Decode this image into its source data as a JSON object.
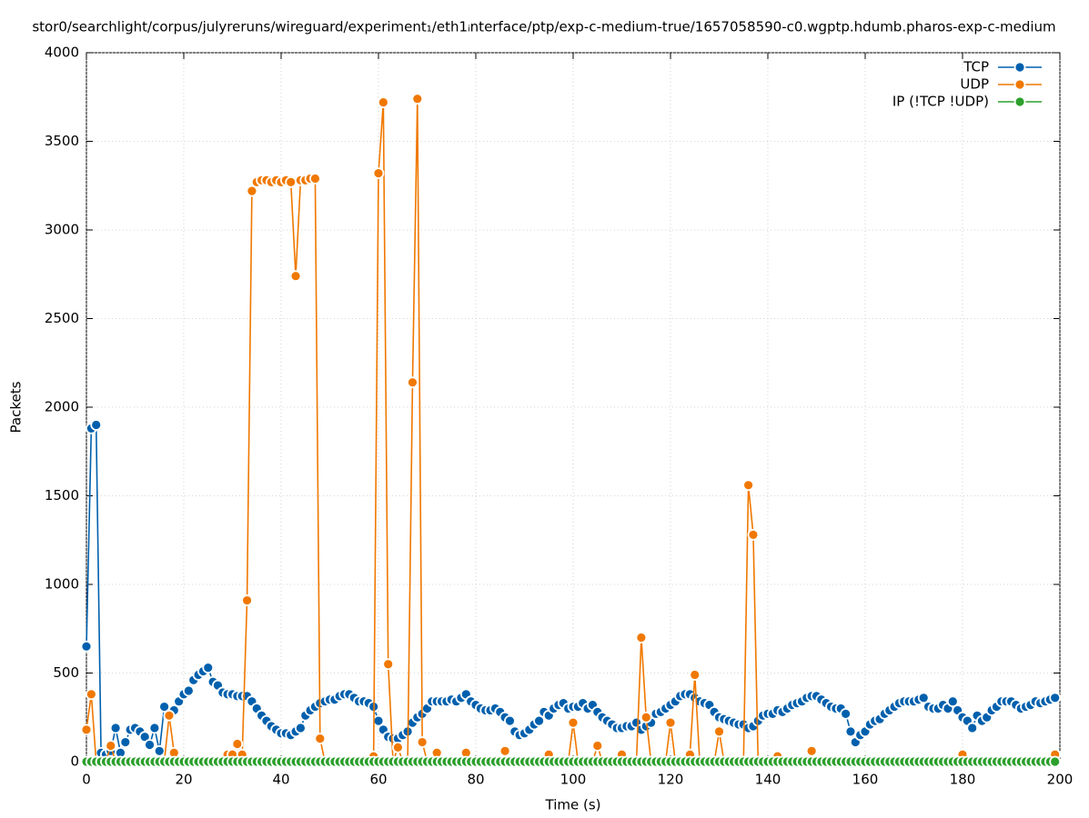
{
  "chart_data": {
    "type": "line",
    "title": "stor0/searchlight/corpus/julyreruns/wireguard/experiment₁/eth1ᵢnterface/ptp/exp-c-medium-true/1657058590-c0.wgptp.hdumb.pharos-exp-c-medium",
    "xlabel": "Time (s)",
    "ylabel": "Packets",
    "xlim": [
      0,
      200
    ],
    "ylim": [
      0,
      4000
    ],
    "xticks": [
      0,
      20,
      40,
      60,
      80,
      100,
      120,
      140,
      160,
      180,
      200
    ],
    "yticks": [
      0,
      500,
      1000,
      1500,
      2000,
      2500,
      3000,
      3500,
      4000
    ],
    "grid": true,
    "legend": "top-right",
    "x": [
      0,
      1,
      2,
      3,
      4,
      5,
      6,
      7,
      8,
      9,
      10,
      11,
      12,
      13,
      14,
      15,
      16,
      17,
      18,
      19,
      20,
      21,
      22,
      23,
      24,
      25,
      26,
      27,
      28,
      29,
      30,
      31,
      32,
      33,
      34,
      35,
      36,
      37,
      38,
      39,
      40,
      41,
      42,
      43,
      44,
      45,
      46,
      47,
      48,
      49,
      50,
      51,
      52,
      53,
      54,
      55,
      56,
      57,
      58,
      59,
      60,
      61,
      62,
      63,
      64,
      65,
      66,
      67,
      68,
      69,
      70,
      71,
      72,
      73,
      74,
      75,
      76,
      77,
      78,
      79,
      80,
      81,
      82,
      83,
      84,
      85,
      86,
      87,
      88,
      89,
      90,
      91,
      92,
      93,
      94,
      95,
      96,
      97,
      98,
      99,
      100,
      101,
      102,
      103,
      104,
      105,
      106,
      107,
      108,
      109,
      110,
      111,
      112,
      113,
      114,
      115,
      116,
      117,
      118,
      119,
      120,
      121,
      122,
      123,
      124,
      125,
      126,
      127,
      128,
      129,
      130,
      131,
      132,
      133,
      134,
      135,
      136,
      137,
      138,
      139,
      140,
      141,
      142,
      143,
      144,
      145,
      146,
      147,
      148,
      149,
      150,
      151,
      152,
      153,
      154,
      155,
      156,
      157,
      158,
      159,
      160,
      161,
      162,
      163,
      164,
      165,
      166,
      167,
      168,
      169,
      170,
      171,
      172,
      173,
      174,
      175,
      176,
      177,
      178,
      179,
      180,
      181,
      182,
      183,
      184,
      185,
      186,
      187,
      188,
      189,
      190,
      191,
      192,
      193,
      194,
      195,
      196,
      197,
      198,
      199
    ],
    "series": [
      {
        "name": "TCP",
        "color": "#0060ad",
        "values": [
          650,
          1880,
          1900,
          50,
          40,
          60,
          190,
          50,
          110,
          180,
          190,
          170,
          140,
          95,
          190,
          60,
          310,
          250,
          290,
          340,
          380,
          400,
          460,
          490,
          510,
          530,
          450,
          430,
          390,
          380,
          380,
          370,
          370,
          370,
          340,
          300,
          260,
          230,
          200,
          180,
          160,
          160,
          150,
          170,
          190,
          260,
          290,
          310,
          330,
          340,
          350,
          350,
          370,
          380,
          380,
          360,
          340,
          340,
          330,
          310,
          230,
          180,
          140,
          130,
          130,
          150,
          170,
          220,
          250,
          270,
          300,
          340,
          340,
          340,
          340,
          350,
          340,
          360,
          380,
          340,
          320,
          300,
          290,
          290,
          300,
          280,
          250,
          230,
          170,
          150,
          160,
          180,
          210,
          230,
          280,
          260,
          300,
          320,
          330,
          300,
          310,
          310,
          330,
          300,
          320,
          280,
          250,
          230,
          210,
          190,
          190,
          200,
          200,
          220,
          180,
          200,
          220,
          270,
          280,
          300,
          320,
          340,
          370,
          380,
          380,
          360,
          340,
          330,
          320,
          280,
          250,
          240,
          230,
          220,
          210,
          210,
          190,
          200,
          230,
          260,
          270,
          270,
          290,
          280,
          300,
          320,
          330,
          340,
          360,
          370,
          370,
          350,
          330,
          310,
          300,
          300,
          270,
          170,
          110,
          150,
          170,
          210,
          230,
          240,
          270,
          290,
          310,
          330,
          340,
          340,
          340,
          350,
          360,
          310,
          300,
          300,
          320,
          300,
          340,
          290,
          250,
          230,
          190,
          260,
          230,
          250,
          290,
          310,
          340,
          340,
          340,
          320,
          300,
          310,
          320,
          340,
          330,
          340,
          350,
          360
        ]
      },
      {
        "name": "UDP",
        "color": "#f07800",
        "values": [
          180,
          380,
          0,
          0,
          0,
          90,
          0,
          0,
          0,
          0,
          0,
          0,
          0,
          0,
          0,
          0,
          0,
          260,
          50,
          0,
          0,
          0,
          0,
          0,
          0,
          0,
          0,
          0,
          0,
          40,
          40,
          100,
          40,
          910,
          3220,
          3270,
          3280,
          3280,
          3270,
          3280,
          3270,
          3280,
          3270,
          2740,
          3280,
          3280,
          3290,
          3290,
          130,
          0,
          0,
          0,
          0,
          0,
          0,
          0,
          0,
          0,
          0,
          30,
          3320,
          3720,
          550,
          0,
          80,
          0,
          0,
          2140,
          3740,
          110,
          0,
          0,
          50,
          0,
          0,
          0,
          0,
          0,
          50,
          0,
          0,
          0,
          0,
          0,
          0,
          0,
          60,
          0,
          0,
          0,
          0,
          0,
          0,
          0,
          0,
          40,
          0,
          0,
          0,
          0,
          220,
          0,
          0,
          0,
          0,
          90,
          0,
          0,
          0,
          0,
          40,
          0,
          0,
          0,
          700,
          250,
          0,
          0,
          0,
          0,
          220,
          0,
          0,
          0,
          40,
          490,
          0,
          0,
          0,
          0,
          170,
          0,
          0,
          0,
          0,
          0,
          1560,
          1280,
          0,
          0,
          0,
          0,
          30,
          0,
          0,
          0,
          0,
          0,
          0,
          60,
          0,
          0,
          0,
          0,
          0,
          0,
          0,
          0,
          0,
          0,
          0,
          0,
          0,
          0,
          0,
          0,
          0,
          0,
          0,
          0,
          0,
          0,
          0,
          0,
          0,
          0,
          0,
          0,
          0,
          0,
          40,
          0,
          0,
          0,
          0,
          0,
          0,
          0,
          0,
          0,
          0,
          0,
          0,
          0,
          0,
          0,
          0,
          0,
          0,
          40
        ]
      },
      {
        "name": "IP (!TCP  !UDP)",
        "color": "#2ca02c",
        "values": [
          0,
          0,
          0,
          0,
          0,
          0,
          0,
          0,
          0,
          0,
          0,
          0,
          0,
          0,
          0,
          0,
          0,
          0,
          0,
          0,
          0,
          0,
          0,
          0,
          0,
          0,
          0,
          0,
          0,
          0,
          0,
          0,
          0,
          0,
          0,
          0,
          0,
          0,
          0,
          0,
          0,
          0,
          0,
          0,
          0,
          0,
          0,
          0,
          0,
          0,
          0,
          0,
          0,
          0,
          0,
          0,
          0,
          0,
          0,
          0,
          0,
          0,
          0,
          0,
          0,
          0,
          0,
          0,
          0,
          0,
          0,
          0,
          0,
          0,
          0,
          0,
          0,
          0,
          0,
          0,
          0,
          0,
          0,
          0,
          0,
          0,
          0,
          0,
          0,
          0,
          0,
          0,
          0,
          0,
          0,
          0,
          0,
          0,
          0,
          0,
          0,
          0,
          0,
          0,
          0,
          0,
          0,
          0,
          0,
          0,
          0,
          0,
          0,
          0,
          0,
          0,
          0,
          0,
          0,
          0,
          0,
          0,
          0,
          0,
          0,
          0,
          0,
          0,
          0,
          0,
          0,
          0,
          0,
          0,
          0,
          0,
          0,
          0,
          0,
          0,
          0,
          0,
          0,
          0,
          0,
          0,
          0,
          0,
          0,
          0,
          0,
          0,
          0,
          0,
          0,
          0,
          0,
          0,
          0,
          0,
          0,
          0,
          0,
          0,
          0,
          0,
          0,
          0,
          0,
          0,
          0,
          0,
          0,
          0,
          0,
          0,
          0,
          0,
          0,
          0,
          0,
          0,
          0,
          0,
          0,
          0,
          0,
          0,
          0,
          0,
          0,
          0,
          0,
          0,
          0,
          0,
          0,
          0,
          0,
          0
        ]
      }
    ]
  }
}
